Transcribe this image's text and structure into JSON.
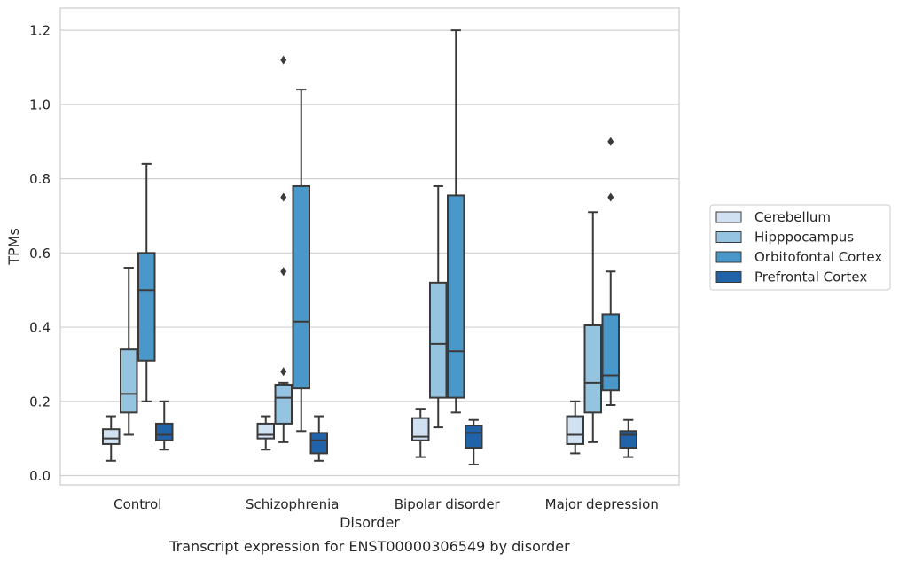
{
  "chart_data": {
    "type": "box",
    "title": "",
    "caption": "Transcript expression for ENST00000306549 by disorder",
    "xlabel": "Disorder",
    "ylabel": "TPMs",
    "ylim": [
      -0.025,
      1.26
    ],
    "yticks": [
      0.0,
      0.2,
      0.4,
      0.6,
      0.8,
      1.0,
      1.2
    ],
    "ytick_labels": [
      "0.0",
      "0.2",
      "0.4",
      "0.6",
      "0.8",
      "1.0",
      "1.2"
    ],
    "grid": "horizontal",
    "legend_position": "right",
    "categories": [
      "Control",
      "Schizophrenia",
      "Bipolar disorder",
      "Major depression"
    ],
    "series": [
      {
        "name": "Cerebellum",
        "color": "#d0e1f2",
        "boxes": [
          {
            "whisker_low": 0.04,
            "q1": 0.085,
            "median": 0.1,
            "q3": 0.125,
            "whisker_high": 0.16,
            "outliers": []
          },
          {
            "whisker_low": 0.07,
            "q1": 0.1,
            "median": 0.11,
            "q3": 0.14,
            "whisker_high": 0.16,
            "outliers": []
          },
          {
            "whisker_low": 0.05,
            "q1": 0.095,
            "median": 0.105,
            "q3": 0.155,
            "whisker_high": 0.18,
            "outliers": []
          },
          {
            "whisker_low": 0.06,
            "q1": 0.085,
            "median": 0.11,
            "q3": 0.16,
            "whisker_high": 0.2,
            "outliers": []
          }
        ]
      },
      {
        "name": "Hipppocampus",
        "color": "#94c4df",
        "boxes": [
          {
            "whisker_low": 0.11,
            "q1": 0.17,
            "median": 0.22,
            "q3": 0.34,
            "whisker_high": 0.56,
            "outliers": []
          },
          {
            "whisker_low": 0.09,
            "q1": 0.14,
            "median": 0.21,
            "q3": 0.245,
            "whisker_high": 0.25,
            "outliers": [
              0.28,
              0.55,
              0.75,
              1.12
            ]
          },
          {
            "whisker_low": 0.13,
            "q1": 0.21,
            "median": 0.355,
            "q3": 0.52,
            "whisker_high": 0.78,
            "outliers": []
          },
          {
            "whisker_low": 0.09,
            "q1": 0.17,
            "median": 0.25,
            "q3": 0.405,
            "whisker_high": 0.71,
            "outliers": []
          }
        ]
      },
      {
        "name": "Orbitofontal Cortex",
        "color": "#4a98c9",
        "boxes": [
          {
            "whisker_low": 0.2,
            "q1": 0.31,
            "median": 0.5,
            "q3": 0.6,
            "whisker_high": 0.84,
            "outliers": []
          },
          {
            "whisker_low": 0.12,
            "q1": 0.235,
            "median": 0.415,
            "q3": 0.78,
            "whisker_high": 1.04,
            "outliers": []
          },
          {
            "whisker_low": 0.17,
            "q1": 0.21,
            "median": 0.335,
            "q3": 0.755,
            "whisker_high": 1.2,
            "outliers": []
          },
          {
            "whisker_low": 0.19,
            "q1": 0.23,
            "median": 0.27,
            "q3": 0.435,
            "whisker_high": 0.55,
            "outliers": [
              0.75,
              0.9
            ]
          }
        ]
      },
      {
        "name": "Prefrontal Cortex",
        "color": "#2163a8",
        "boxes": [
          {
            "whisker_low": 0.07,
            "q1": 0.095,
            "median": 0.11,
            "q3": 0.14,
            "whisker_high": 0.2,
            "outliers": []
          },
          {
            "whisker_low": 0.04,
            "q1": 0.06,
            "median": 0.095,
            "q3": 0.115,
            "whisker_high": 0.16,
            "outliers": []
          },
          {
            "whisker_low": 0.03,
            "q1": 0.075,
            "median": 0.115,
            "q3": 0.135,
            "whisker_high": 0.15,
            "outliers": []
          },
          {
            "whisker_low": 0.05,
            "q1": 0.075,
            "median": 0.11,
            "q3": 0.12,
            "whisker_high": 0.15,
            "outliers": []
          }
        ]
      }
    ],
    "colors": {
      "grid": "#d0d0d0",
      "frame": "#cccccc",
      "line": "#3a3a3a"
    }
  }
}
